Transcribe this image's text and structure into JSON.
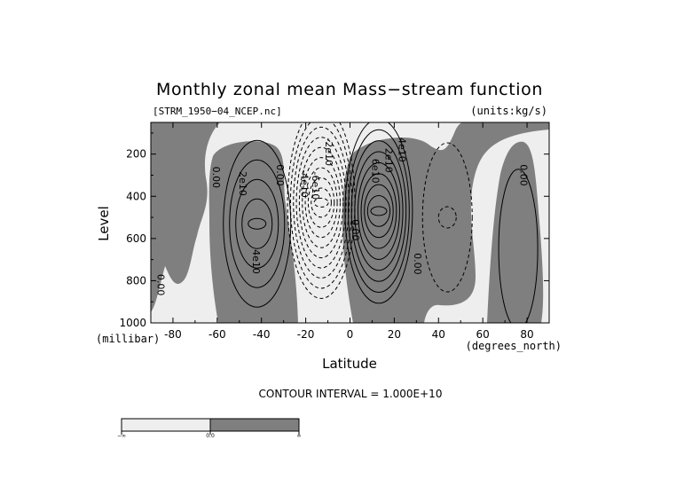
{
  "chart_data": {
    "type": "contour",
    "title": "Monthly zonal mean Mass−stream function",
    "file_label": "[STRM_1950−04_NCEP.nc]",
    "units_label": "(units:kg/s)",
    "xlabel": "Latitude",
    "x_units": "(degrees_north)",
    "ylabel": "Level",
    "y_units": "(millibar)",
    "xlim": [
      -90,
      90
    ],
    "ylim": [
      1000,
      50
    ],
    "x_ticks": [
      -80,
      -60,
      -40,
      -20,
      0,
      20,
      40,
      60,
      80
    ],
    "y_ticks": [
      200,
      400,
      600,
      800,
      1000
    ],
    "contour_interval_text": "CONTOUR INTERVAL = 1.000E+10",
    "contour_interval": 10000000000,
    "shading": "values above 0 shaded dark gray, below 0 light gray",
    "cells": [
      {
        "name": "southern-cell",
        "lat": -42,
        "level": 530,
        "peak": 50000000000,
        "sign": "positive"
      },
      {
        "name": "tropical-negative-cell",
        "lat": -13,
        "level": 430,
        "peak": -100000000000,
        "sign": "negative"
      },
      {
        "name": "tropical-positive-cell",
        "lat": 13,
        "level": 470,
        "peak": 90000000000,
        "sign": "positive"
      },
      {
        "name": "northern-cell",
        "lat": 44,
        "level": 500,
        "peak": -20000000000,
        "sign": "negative"
      },
      {
        "name": "polar-cell",
        "lat": 76,
        "level": 650,
        "peak": 10000000000,
        "sign": "positive"
      }
    ],
    "contour_labels": [
      {
        "text": "0.00",
        "lat": -62,
        "level": 310
      },
      {
        "text": "2e10",
        "lat": -50,
        "level": 340
      },
      {
        "text": "4e10",
        "lat": -44,
        "level": 710
      },
      {
        "text": "0.00",
        "lat": -87,
        "level": 820
      },
      {
        "text": "0.00",
        "lat": -33,
        "level": 300
      },
      {
        "text": "-4e10",
        "lat": -22,
        "level": 340
      },
      {
        "text": "-6e10",
        "lat": -17,
        "level": 350
      },
      {
        "text": "-2e10",
        "lat": -11,
        "level": 190
      },
      {
        "text": "0.00",
        "lat": 1,
        "level": 560
      },
      {
        "text": "6e10",
        "lat": 10,
        "level": 280
      },
      {
        "text": "2e10",
        "lat": 16,
        "level": 230
      },
      {
        "text": "4e10",
        "lat": 22,
        "level": 180
      },
      {
        "text": "0.00",
        "lat": 29,
        "level": 720
      },
      {
        "text": "0.00",
        "lat": 77,
        "level": 300
      }
    ],
    "colorbar": {
      "colors": [
        "#eeeeee",
        "#7f7f7f"
      ],
      "labels": [
        "−∞",
        "0.0",
        "∞"
      ]
    },
    "colors": {
      "positive": "#7f7f7f",
      "negative": "#eeeeee"
    }
  }
}
